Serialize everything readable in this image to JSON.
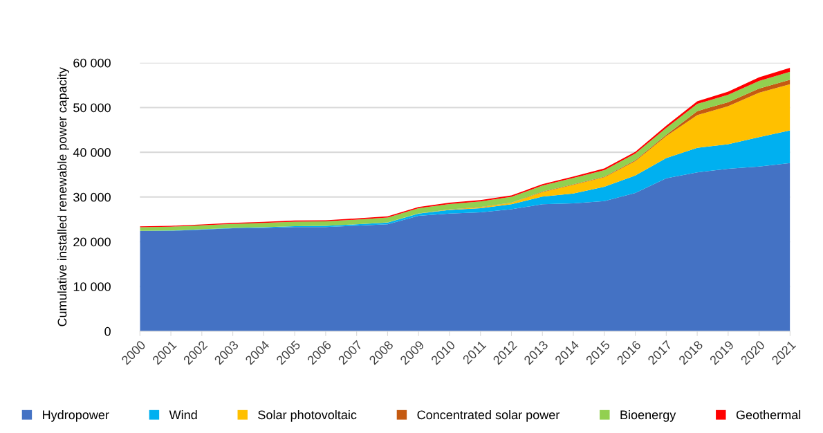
{
  "chart_data": {
    "type": "area",
    "stacked": true,
    "ylabel": "Cumulative installed renewable power capacity",
    "categories": [
      "2000",
      "2001",
      "2002",
      "2003",
      "2004",
      "2005",
      "2006",
      "2007",
      "2008",
      "2009",
      "2010",
      "2011",
      "2012",
      "2013",
      "2014",
      "2015",
      "2016",
      "2017",
      "2018",
      "2019",
      "2020",
      "2021"
    ],
    "ylim": [
      0,
      60000
    ],
    "yticks": [
      {
        "value": 0,
        "label": "0"
      },
      {
        "value": 10000,
        "label": "10 000"
      },
      {
        "value": 20000,
        "label": "20 000"
      },
      {
        "value": 30000,
        "label": "30 000"
      },
      {
        "value": 40000,
        "label": "40 000"
      },
      {
        "value": 50000,
        "label": "50 000"
      },
      {
        "value": 60000,
        "label": "60 000"
      }
    ],
    "grid": "y",
    "legend": "bottom",
    "series": [
      {
        "name": "Hydropower",
        "color": "#4472c4",
        "values": [
          22400,
          22450,
          22700,
          23000,
          23100,
          23300,
          23300,
          23600,
          23900,
          25800,
          26300,
          26560,
          27250,
          28400,
          28600,
          29100,
          30900,
          34200,
          35500,
          36300,
          36800,
          37600
        ]
      },
      {
        "name": "Wind",
        "color": "#00b0f0",
        "values": [
          50,
          60,
          80,
          100,
          150,
          200,
          250,
          300,
          400,
          500,
          800,
          950,
          1150,
          1700,
          2200,
          3200,
          3900,
          4500,
          5500,
          5500,
          6600,
          7300
        ]
      },
      {
        "name": "Solar photovoltaic",
        "color": "#ffc000",
        "values": [
          0,
          0,
          0,
          0,
          0,
          0,
          0,
          10,
          20,
          50,
          100,
          200,
          300,
          1000,
          1900,
          2100,
          3200,
          4900,
          7300,
          8500,
          9900,
          10300
        ]
      },
      {
        "name": "Concentrated solar power",
        "color": "#c55a11",
        "values": [
          0,
          0,
          0,
          0,
          0,
          0,
          0,
          0,
          0,
          0,
          20,
          50,
          50,
          100,
          150,
          150,
          200,
          300,
          900,
          900,
          950,
          1000
        ]
      },
      {
        "name": "Bioenergy",
        "color": "#92d050",
        "values": [
          800,
          850,
          900,
          900,
          950,
          1000,
          1000,
          1050,
          1100,
          1150,
          1200,
          1250,
          1300,
          1350,
          1400,
          1450,
          1500,
          1550,
          1600,
          1650,
          1700,
          1800
        ]
      },
      {
        "name": "Geothermal",
        "color": "#ff0000",
        "values": [
          200,
          200,
          200,
          220,
          230,
          240,
          250,
          260,
          270,
          280,
          300,
          300,
          300,
          320,
          340,
          400,
          400,
          500,
          600,
          700,
          800,
          900
        ]
      }
    ]
  }
}
